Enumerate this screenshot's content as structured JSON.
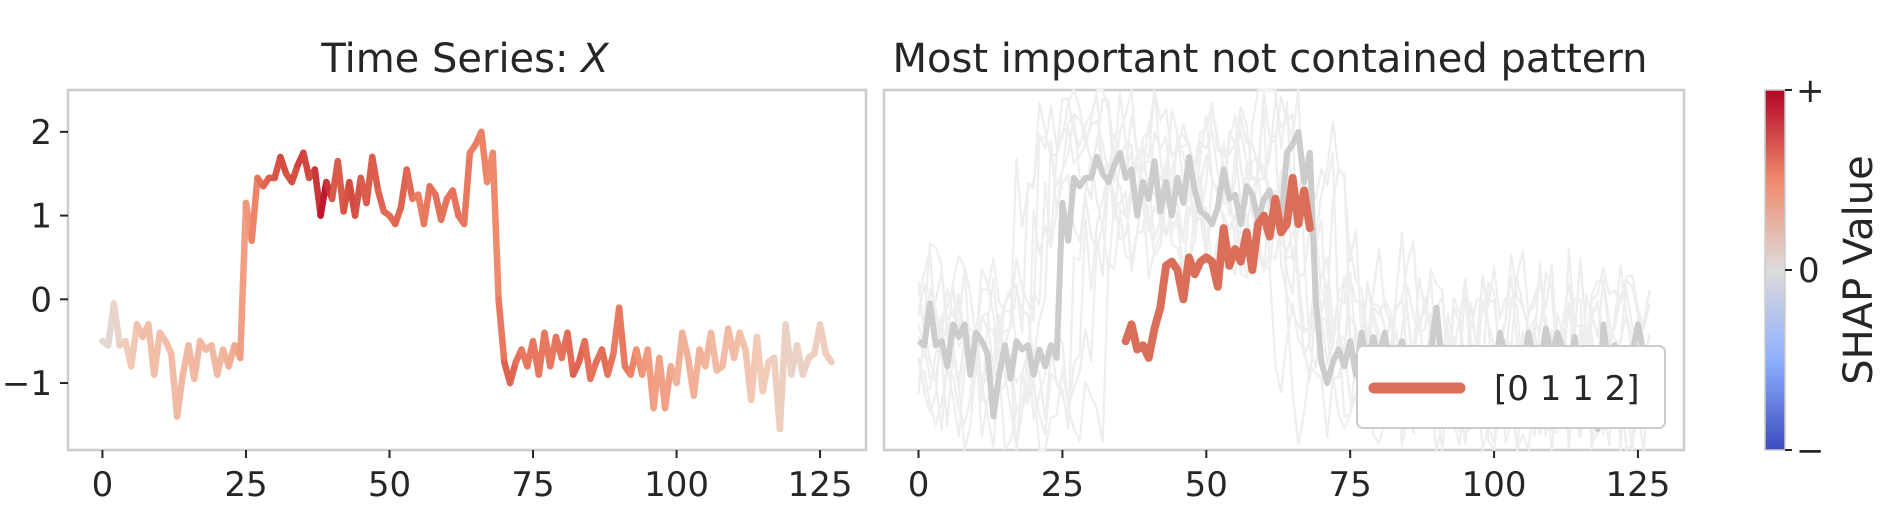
{
  "chart_data": [
    {
      "type": "line",
      "title": "Time Series: ",
      "title_italic": "X",
      "xlim": [
        -6,
        133
      ],
      "ylim": [
        -1.8,
        2.5
      ],
      "xticks": [
        0,
        25,
        50,
        75,
        100,
        125
      ],
      "xtick_labels": [
        "0",
        "25",
        "50",
        "75",
        "100",
        "125"
      ],
      "yticks": [
        -1,
        0,
        1,
        2
      ],
      "ytick_labels": [
        "−1",
        "0",
        "1",
        "2"
      ],
      "grid": false,
      "series": [
        {
          "x": [
            0,
            1,
            2,
            3,
            4,
            5,
            6,
            7,
            8,
            9,
            10,
            11,
            12,
            13,
            14,
            15,
            16,
            17,
            18,
            19,
            20,
            21,
            22,
            23,
            24,
            25,
            26,
            27,
            28,
            29,
            30,
            31,
            32,
            33,
            34,
            35,
            36,
            37,
            38,
            39,
            40,
            41,
            42,
            43,
            44,
            45,
            46,
            47,
            48,
            49,
            50,
            51,
            52,
            53,
            54,
            55,
            56,
            57,
            58,
            59,
            60,
            61,
            62,
            63,
            64,
            65,
            66,
            67,
            68,
            69,
            70,
            71,
            72,
            73,
            74,
            75,
            76,
            77,
            78,
            79,
            80,
            81,
            82,
            83,
            84,
            85,
            86,
            87,
            88,
            89,
            90,
            91,
            92,
            93,
            94,
            95,
            96,
            97,
            98,
            99,
            100,
            101,
            102,
            103,
            104,
            105,
            106,
            107,
            108,
            109,
            110,
            111,
            112,
            113,
            114,
            115,
            116,
            117,
            118,
            119,
            120,
            121,
            122,
            123,
            124,
            125,
            126,
            127
          ],
          "values": [
            -0.5,
            -0.55,
            -0.05,
            -0.55,
            -0.5,
            -0.8,
            -0.3,
            -0.45,
            -0.3,
            -0.9,
            -0.4,
            -0.5,
            -0.65,
            -1.4,
            -0.9,
            -0.55,
            -0.95,
            -0.5,
            -0.6,
            -0.55,
            -0.9,
            -0.6,
            -0.8,
            -0.55,
            -0.7,
            1.15,
            0.7,
            1.45,
            1.35,
            1.45,
            1.45,
            1.7,
            1.5,
            1.4,
            1.6,
            1.75,
            1.45,
            1.55,
            1.0,
            1.4,
            1.2,
            1.65,
            1.05,
            1.4,
            1.0,
            1.45,
            1.15,
            1.7,
            1.3,
            1.05,
            1.0,
            0.9,
            1.1,
            1.55,
            1.2,
            1.25,
            0.9,
            1.35,
            1.25,
            0.95,
            1.2,
            1.3,
            1.0,
            0.9,
            1.75,
            1.85,
            2.0,
            1.4,
            1.75,
            0.0,
            -0.75,
            -1.0,
            -0.75,
            -0.6,
            -0.8,
            -0.5,
            -0.9,
            -0.4,
            -0.8,
            -0.45,
            -0.7,
            -0.4,
            -0.9,
            -0.75,
            -0.5,
            -0.95,
            -0.75,
            -0.6,
            -0.9,
            -0.65,
            -0.1,
            -0.8,
            -0.9,
            -0.6,
            -0.9,
            -0.6,
            -1.3,
            -0.7,
            -1.3,
            -0.8,
            -1.0,
            -0.4,
            -0.7,
            -1.15,
            -0.6,
            -0.8,
            -0.4,
            -0.85,
            -0.8,
            -0.35,
            -0.7,
            -0.4,
            -0.6,
            -1.2,
            -0.45,
            -1.1,
            -0.75,
            -0.7,
            -1.55,
            -0.3,
            -0.9,
            -0.55,
            -0.9,
            -0.7,
            -0.65,
            -0.3,
            -0.65,
            -0.75
          ],
          "shap": [
            0.05,
            0.1,
            0.05,
            0.2,
            0.22,
            0.25,
            0.28,
            0.3,
            0.3,
            0.3,
            0.3,
            0.3,
            0.3,
            0.32,
            0.32,
            0.32,
            0.32,
            0.32,
            0.32,
            0.32,
            0.32,
            0.32,
            0.35,
            0.38,
            0.4,
            0.45,
            0.45,
            0.6,
            0.62,
            0.7,
            0.7,
            0.78,
            0.75,
            0.72,
            0.8,
            0.8,
            0.78,
            0.75,
            0.92,
            0.95,
            0.75,
            0.7,
            0.72,
            0.75,
            0.8,
            0.7,
            0.7,
            0.7,
            0.7,
            0.65,
            0.62,
            0.65,
            0.65,
            0.7,
            0.6,
            0.55,
            0.55,
            0.62,
            0.62,
            0.6,
            0.6,
            0.6,
            0.6,
            0.6,
            0.55,
            0.55,
            0.55,
            0.52,
            0.5,
            0.5,
            0.65,
            0.7,
            0.62,
            0.6,
            0.55,
            0.62,
            0.55,
            0.62,
            0.55,
            0.6,
            0.6,
            0.62,
            0.65,
            0.7,
            0.62,
            0.6,
            0.6,
            0.62,
            0.62,
            0.58,
            0.55,
            0.6,
            0.55,
            0.5,
            0.45,
            0.45,
            0.42,
            0.4,
            0.42,
            0.4,
            0.35,
            0.35,
            0.35,
            0.35,
            0.35,
            0.35,
            0.32,
            0.32,
            0.3,
            0.32,
            0.3,
            0.3,
            0.28,
            0.28,
            0.25,
            0.25,
            0.25,
            0.22,
            0.2,
            0.18,
            0.15,
            0.15,
            0.15,
            0.18,
            0.2,
            0.2,
            0.22,
            0.22
          ]
        }
      ]
    },
    {
      "type": "line",
      "title": "Most important not contained pattern",
      "xlim": [
        -6,
        133
      ],
      "ylim": [
        -1.8,
        2.5
      ],
      "xticks": [
        0,
        25,
        50,
        75,
        100,
        125
      ],
      "xtick_labels": [
        "0",
        "25",
        "50",
        "75",
        "100",
        "125"
      ],
      "grid": false,
      "legend": {
        "placement": "lower right",
        "label": "[0 1 1 2]",
        "color": "#db6e58"
      },
      "background_series_color": "#eeeeee",
      "main_series_color": "#cccccc",
      "pattern": {
        "x": [
          36,
          37,
          38,
          39,
          40,
          41,
          42,
          43,
          44,
          45,
          46,
          47,
          48,
          49,
          50,
          51,
          52,
          53,
          54,
          55,
          56,
          57,
          58,
          59,
          60,
          61,
          62,
          63,
          64,
          65,
          66,
          67,
          68
        ],
        "values": [
          -0.5,
          -0.3,
          -0.6,
          -0.55,
          -0.7,
          -0.35,
          -0.1,
          0.4,
          0.45,
          0.35,
          0.0,
          0.5,
          0.3,
          0.45,
          0.5,
          0.45,
          0.15,
          0.85,
          0.4,
          0.6,
          0.45,
          0.8,
          0.35,
          0.9,
          1.0,
          0.75,
          1.2,
          0.8,
          0.9,
          1.45,
          0.9,
          1.3,
          0.85
        ],
        "color": "#db6e58"
      },
      "series": [
        {
          "name": "",
          "x": [
            0,
            1,
            2,
            3,
            4,
            5,
            6,
            7,
            8,
            9,
            10,
            11,
            12,
            13,
            14,
            15,
            16,
            17,
            18,
            19,
            20,
            21,
            22,
            23,
            24,
            25,
            26,
            27,
            28,
            29,
            30,
            31,
            32,
            33,
            34,
            35,
            36,
            37,
            38,
            39,
            40,
            41,
            42,
            43,
            44,
            45,
            46,
            47,
            48,
            49,
            50,
            51,
            52,
            53,
            54,
            55,
            56,
            57,
            58,
            59,
            60,
            61,
            62,
            63,
            64,
            65,
            66,
            67,
            68,
            69,
            70,
            71,
            72,
            73,
            74,
            75,
            76,
            77,
            78,
            79,
            80,
            81,
            82,
            83,
            84,
            85,
            86,
            87,
            88,
            89,
            90,
            91,
            92,
            93,
            94,
            95,
            96,
            97,
            98,
            99,
            100,
            101,
            102,
            103,
            104,
            105,
            106,
            107,
            108,
            109,
            110,
            111,
            112,
            113,
            114,
            115,
            116,
            117,
            118,
            119,
            120,
            121,
            122,
            123,
            124,
            125,
            126,
            127
          ],
          "values": [
            -0.5,
            -0.55,
            -0.05,
            -0.55,
            -0.5,
            -0.8,
            -0.3,
            -0.45,
            -0.3,
            -0.9,
            -0.4,
            -0.5,
            -0.65,
            -1.4,
            -0.9,
            -0.55,
            -0.95,
            -0.5,
            -0.6,
            -0.55,
            -0.9,
            -0.6,
            -0.8,
            -0.55,
            -0.7,
            1.15,
            0.7,
            1.45,
            1.35,
            1.45,
            1.45,
            1.7,
            1.5,
            1.4,
            1.6,
            1.75,
            1.45,
            1.55,
            1.0,
            1.4,
            1.2,
            1.65,
            1.05,
            1.4,
            1.0,
            1.45,
            1.15,
            1.7,
            1.3,
            1.05,
            1.0,
            0.9,
            1.1,
            1.55,
            1.2,
            1.25,
            0.9,
            1.35,
            1.25,
            0.95,
            1.2,
            1.3,
            1.0,
            0.9,
            1.75,
            1.85,
            2.0,
            1.4,
            1.75,
            0.0,
            -0.75,
            -1.0,
            -0.75,
            -0.6,
            -0.8,
            -0.5,
            -0.9,
            -0.4,
            -0.8,
            -0.45,
            -0.7,
            -0.4,
            -0.9,
            -0.75,
            -0.5,
            -0.95,
            -0.75,
            -0.6,
            -0.9,
            -0.65,
            -0.1,
            -0.8,
            -0.9,
            -0.6,
            -0.9,
            -0.6,
            -1.3,
            -0.7,
            -1.3,
            -0.8,
            -1.0,
            -0.4,
            -0.7,
            -1.15,
            -0.6,
            -0.8,
            -0.4,
            -0.85,
            -0.8,
            -0.35,
            -0.7,
            -0.4,
            -0.6,
            -1.2,
            -0.45,
            -1.1,
            -0.75,
            -0.7,
            -1.55,
            -0.3,
            -0.9,
            -0.55,
            -0.9,
            -0.7,
            -0.65,
            -0.3,
            -0.65,
            -0.75
          ]
        }
      ]
    }
  ],
  "colorbar": {
    "label": "SHAP Value",
    "tick_labels": [
      "+",
      "0",
      "−"
    ],
    "colormap": "coolwarm",
    "colors": [
      "#b40426",
      "#f08a6c",
      "#dddcdc",
      "#8db0fe",
      "#3b4cc0"
    ]
  }
}
